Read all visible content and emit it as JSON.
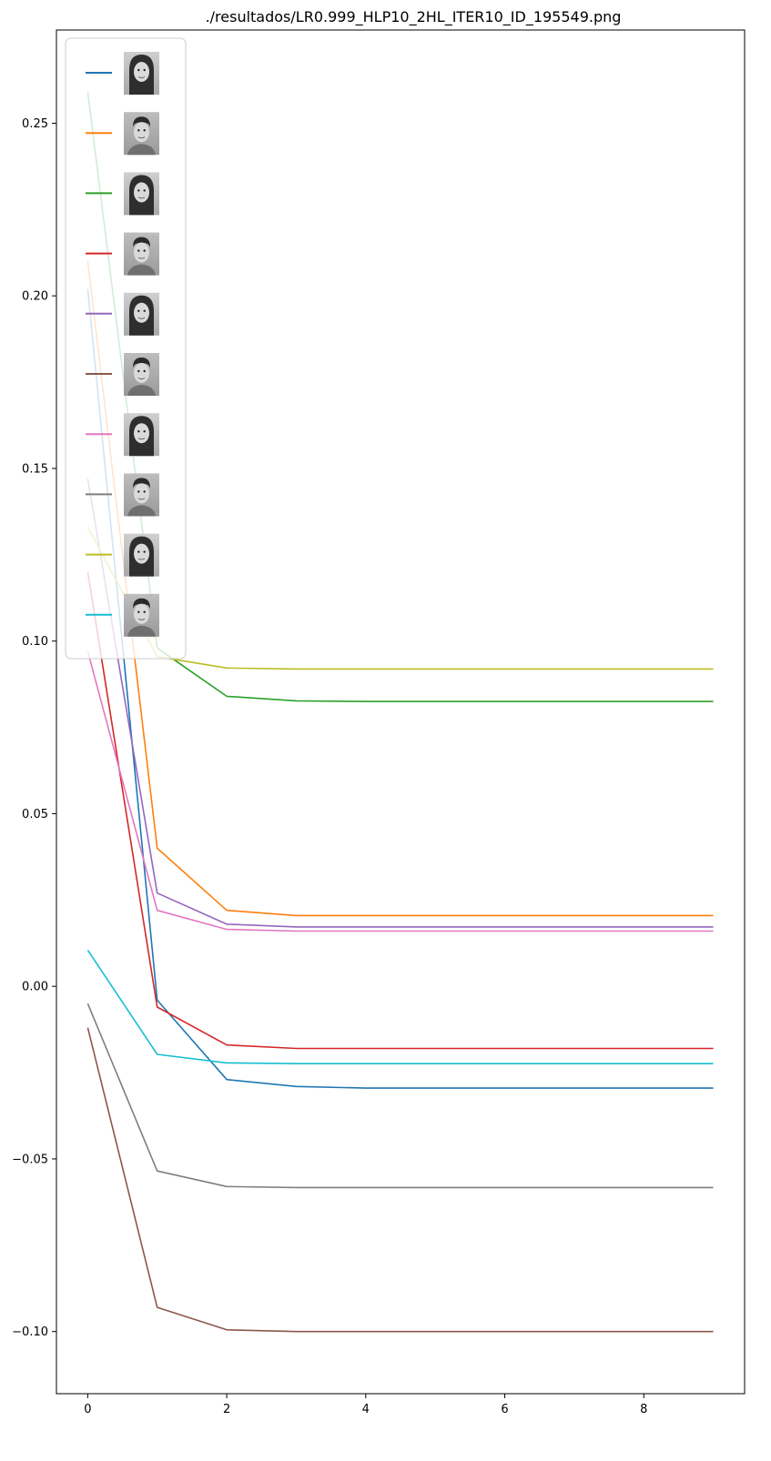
{
  "chart_data": {
    "type": "line",
    "title": "./resultados/LR0.999_HLP10_2HL_ITER10_ID_195549.png",
    "xlabel": "",
    "ylabel": "",
    "x": [
      0,
      1,
      2,
      3,
      4,
      5,
      6,
      7,
      8,
      9
    ],
    "xlim": [
      -0.45,
      9.45
    ],
    "ylim": [
      -0.118,
      0.277
    ],
    "xticks": [
      0,
      2,
      4,
      6,
      8
    ],
    "xtick_labels": [
      "0",
      "2",
      "4",
      "6",
      "8"
    ],
    "yticks": [
      -0.1,
      -0.05,
      0.0,
      0.05,
      0.1,
      0.15,
      0.2,
      0.25
    ],
    "ytick_labels": [
      "−0.10",
      "−0.05",
      "0.00",
      "0.05",
      "0.10",
      "0.15",
      "0.20",
      "0.25"
    ],
    "grid": false,
    "legend": {
      "placement": "upper-left",
      "entries": [
        {
          "color": "#1f77b4",
          "icon": "face-photo-woman"
        },
        {
          "color": "#ff7f0e",
          "icon": "face-photo-man"
        },
        {
          "color": "#2ca02c",
          "icon": "face-photo-woman"
        },
        {
          "color": "#d62728",
          "icon": "face-photo-man"
        },
        {
          "color": "#9467bd",
          "icon": "face-photo-woman"
        },
        {
          "color": "#8c564b",
          "icon": "face-photo-man"
        },
        {
          "color": "#e377c2",
          "icon": "face-photo-woman"
        },
        {
          "color": "#7f7f7f",
          "icon": "face-photo-man"
        },
        {
          "color": "#bcbd22",
          "icon": "face-photo-woman"
        },
        {
          "color": "#17becf",
          "icon": "face-photo-man"
        }
      ]
    },
    "series": [
      {
        "color": "#1f77b4",
        "values": [
          0.202,
          -0.004,
          -0.027,
          -0.029,
          -0.0295,
          -0.0295,
          -0.0295,
          -0.0295,
          -0.0295,
          -0.0295
        ]
      },
      {
        "color": "#ff7f0e",
        "values": [
          0.21,
          0.04,
          0.022,
          0.0205,
          0.0205,
          0.0205,
          0.0205,
          0.0205,
          0.0205,
          0.0205
        ]
      },
      {
        "color": "#2ca02c",
        "values": [
          0.259,
          0.098,
          0.084,
          0.0827,
          0.0825,
          0.0825,
          0.0825,
          0.0825,
          0.0825,
          0.0825
        ]
      },
      {
        "color": "#d62728",
        "values": [
          0.12,
          -0.006,
          -0.017,
          -0.018,
          -0.018,
          -0.018,
          -0.018,
          -0.018,
          -0.018,
          -0.018
        ]
      },
      {
        "color": "#9467bd",
        "values": [
          0.147,
          0.027,
          0.018,
          0.0172,
          0.0172,
          0.0172,
          0.0172,
          0.0172,
          0.0172,
          0.0172
        ]
      },
      {
        "color": "#8c564b",
        "values": [
          -0.012,
          -0.093,
          -0.0995,
          -0.1,
          -0.1,
          -0.1,
          -0.1,
          -0.1,
          -0.1,
          -0.1
        ]
      },
      {
        "color": "#e377c2",
        "values": [
          0.097,
          0.022,
          0.0165,
          0.016,
          0.016,
          0.016,
          0.016,
          0.016,
          0.016,
          0.016
        ]
      },
      {
        "color": "#7f7f7f",
        "values": [
          -0.005,
          -0.0535,
          -0.058,
          -0.0583,
          -0.0583,
          -0.0583,
          -0.0583,
          -0.0583,
          -0.0583,
          -0.0583
        ]
      },
      {
        "color": "#bcbd22",
        "values": [
          0.133,
          0.0955,
          0.0922,
          0.0919,
          0.0919,
          0.0919,
          0.0919,
          0.0919,
          0.0919,
          0.0919
        ]
      },
      {
        "color": "#17becf",
        "values": [
          0.0105,
          -0.0197,
          -0.0222,
          -0.0224,
          -0.0224,
          -0.0224,
          -0.0224,
          -0.0224,
          -0.0224,
          -0.0224
        ]
      }
    ]
  }
}
